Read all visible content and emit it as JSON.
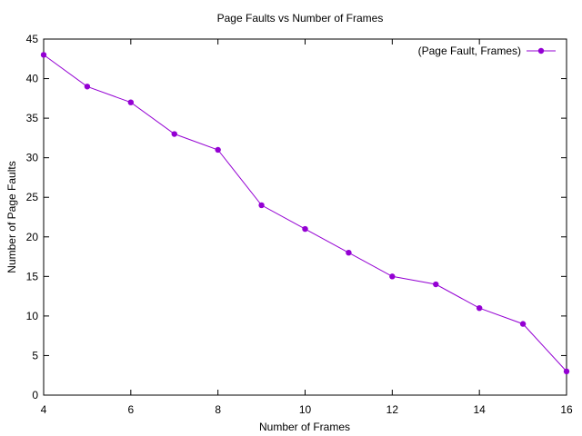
{
  "chart_data": {
    "type": "line",
    "title": "Page Faults vs Number of Frames",
    "xlabel": "Number of Frames",
    "ylabel": "Number of Page Faults",
    "xlim": [
      4,
      16
    ],
    "ylim": [
      0,
      45
    ],
    "xticks": [
      4,
      6,
      8,
      10,
      12,
      14,
      16
    ],
    "yticks": [
      0,
      5,
      10,
      15,
      20,
      25,
      30,
      35,
      40,
      45
    ],
    "grid": false,
    "legend_position": "top-right",
    "series": [
      {
        "name": "(Page Fault, Frames)",
        "color": "#9400d3",
        "marker": "circle",
        "x": [
          4,
          5,
          6,
          7,
          8,
          9,
          10,
          11,
          12,
          13,
          14,
          15,
          16
        ],
        "y": [
          43,
          39,
          37,
          33,
          31,
          24,
          21,
          18,
          15,
          14,
          11,
          9,
          3
        ]
      }
    ]
  }
}
